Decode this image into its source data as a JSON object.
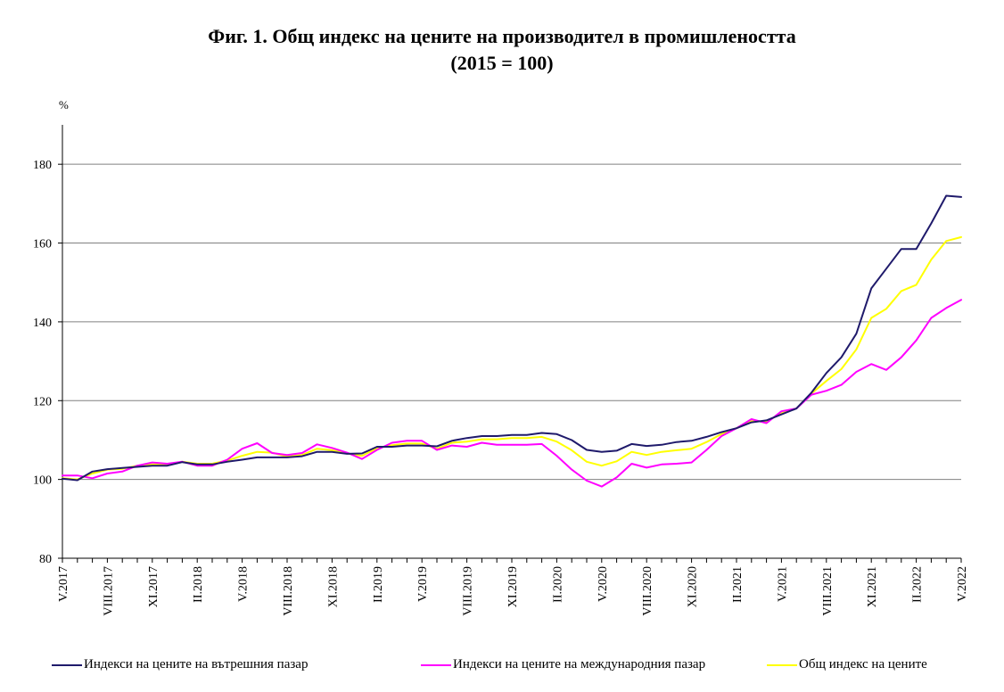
{
  "chart_data": {
    "type": "line",
    "title": "Фиг. 1. Общ индекс на цените на производител в промишлеността",
    "subtitle": "(2015 = 100)",
    "ylabel": "%",
    "xlabel": "",
    "ylim": [
      80,
      190
    ],
    "yticks": [
      80,
      100,
      120,
      140,
      160,
      180
    ],
    "grid": true,
    "legend_position": "bottom",
    "x": [
      "V.2017",
      "VI.2017",
      "VII.2017",
      "VIII.2017",
      "IX.2017",
      "X.2017",
      "XI.2017",
      "XII.2017",
      "I.2018",
      "II.2018",
      "III.2018",
      "IV.2018",
      "V.2018",
      "VI.2018",
      "VII.2018",
      "VIII.2018",
      "IX.2018",
      "X.2018",
      "XI.2018",
      "XII.2018",
      "I.2019",
      "II.2019",
      "III.2019",
      "IV.2019",
      "V.2019",
      "VI.2019",
      "VII.2019",
      "VIII.2019",
      "IX.2019",
      "X.2019",
      "XI.2019",
      "XII.2019",
      "I.2020",
      "II.2020",
      "III.2020",
      "IV.2020",
      "V.2020",
      "VI.2020",
      "VII.2020",
      "VIII.2020",
      "IX.2020",
      "X.2020",
      "XI.2020",
      "XII.2020",
      "I.2021",
      "II.2021",
      "III.2021",
      "IV.2021",
      "V.2021",
      "VI.2021",
      "VII.2021",
      "VIII.2021",
      "IX.2021",
      "X.2021",
      "XI.2021",
      "XII.2021",
      "I.2022",
      "II.2022",
      "III.2022",
      "IV.2022",
      "V.2022"
    ],
    "x_tick_labels": [
      "V.2017",
      "VIII.2017",
      "XI.2017",
      "II.2018",
      "V.2018",
      "VIII.2018",
      "XI.2018",
      "II.2019",
      "V.2019",
      "VIII.2019",
      "XI.2019",
      "II.2020",
      "V.2020",
      "VIII.2020",
      "XI.2020",
      "II.2021",
      "V.2021",
      "VIII.2021",
      "XI.2021",
      "II.2022",
      "V.2022"
    ],
    "series": [
      {
        "name": "Индекси на цените на вътрешния пазар",
        "color": "#1f1a6b",
        "values": [
          100.2,
          99.8,
          102.0,
          102.6,
          102.9,
          103.2,
          103.5,
          103.5,
          104.4,
          103.8,
          103.8,
          104.5,
          105.0,
          105.6,
          105.6,
          105.6,
          105.9,
          107.0,
          107.0,
          106.5,
          106.6,
          108.3,
          108.3,
          108.6,
          108.6,
          108.4,
          109.8,
          110.5,
          111.0,
          111.0,
          111.3,
          111.3,
          111.8,
          111.5,
          110.0,
          107.5,
          107.0,
          107.3,
          109.0,
          108.5,
          108.8,
          109.5,
          109.8,
          110.8,
          112.0,
          113.0,
          114.5,
          115.0,
          116.5,
          118.0,
          122.0,
          127.0,
          131.0,
          137.0,
          148.5,
          153.5,
          158.5,
          158.5,
          165.0,
          172.0,
          171.7
        ]
      },
      {
        "name": "Индекси на цените на международния пазар",
        "color": "#ff00ff",
        "values": [
          101.0,
          101.0,
          100.3,
          101.5,
          102.0,
          103.5,
          104.3,
          104.0,
          104.5,
          103.5,
          103.5,
          105.0,
          107.8,
          109.2,
          106.7,
          106.2,
          106.7,
          108.9,
          108.0,
          106.8,
          105.2,
          107.5,
          109.3,
          109.8,
          109.8,
          107.5,
          108.6,
          108.3,
          109.3,
          108.8,
          108.8,
          108.8,
          109.0,
          106.0,
          102.5,
          99.7,
          98.2,
          100.5,
          104.0,
          103.0,
          103.8,
          104.0,
          104.3,
          107.5,
          111.0,
          113.0,
          115.3,
          114.3,
          117.3,
          118.0,
          121.5,
          122.5,
          124.0,
          127.3,
          129.3,
          127.8,
          131.0,
          135.3,
          141.0,
          143.5,
          145.6
        ]
      },
      {
        "name": "Общ индекс на цените",
        "color": "#ffff00",
        "values": [
          100.3,
          100.0,
          101.5,
          102.5,
          102.7,
          103.5,
          103.8,
          103.8,
          104.5,
          104.0,
          104.0,
          104.8,
          106.0,
          107.0,
          106.8,
          105.8,
          106.2,
          107.8,
          107.4,
          106.6,
          106.0,
          107.9,
          108.7,
          109.1,
          109.1,
          107.8,
          109.3,
          109.6,
          110.2,
          110.2,
          110.5,
          110.5,
          110.8,
          109.6,
          107.4,
          104.5,
          103.5,
          104.6,
          107.0,
          106.2,
          107.0,
          107.4,
          107.8,
          109.5,
          111.5,
          113.0,
          114.8,
          114.7,
          116.8,
          118.0,
          121.8,
          125.0,
          128.0,
          133.0,
          141.0,
          143.3,
          147.8,
          149.4,
          155.8,
          160.5,
          161.5
        ]
      }
    ]
  }
}
